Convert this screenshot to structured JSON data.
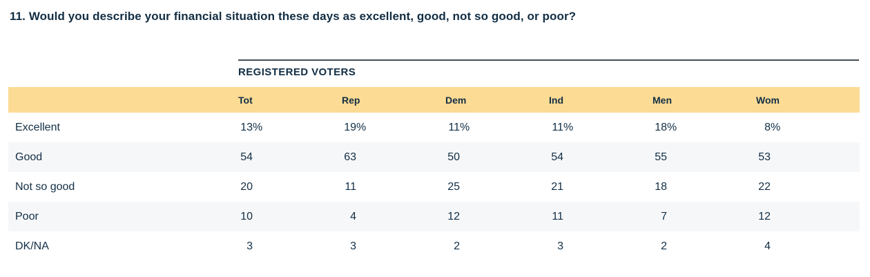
{
  "question": {
    "title": "11. Would you describe your financial situation these days as excellent, good, not so good, or poor?"
  },
  "table": {
    "section_label": "REGISTERED VOTERS",
    "columns": [
      "Tot",
      "Rep",
      "Dem",
      "Ind",
      "Men",
      "Wom"
    ],
    "rows": [
      {
        "label": "Excellent",
        "values": [
          "13%",
          "19%",
          "11%",
          "11%",
          "18%",
          "8%"
        ]
      },
      {
        "label": "Good",
        "values": [
          "54",
          "63",
          "50",
          "54",
          "55",
          "53"
        ]
      },
      {
        "label": "Not so good",
        "values": [
          "20",
          "11",
          "25",
          "21",
          "18",
          "22"
        ]
      },
      {
        "label": "Poor",
        "values": [
          "10",
          "4",
          "12",
          "11",
          "7",
          "12"
        ]
      },
      {
        "label": "DK/NA",
        "values": [
          "3",
          "3",
          "2",
          "3",
          "2",
          "4"
        ]
      }
    ]
  },
  "colors": {
    "text": "#122e44",
    "header_band": "#fcdb94",
    "alt_row": "#f6f7f9",
    "divider": "#444e57"
  },
  "chart_data": {
    "type": "table",
    "title": "11. Would you describe your financial situation these days as excellent, good, not so good, or poor?",
    "group_header": "REGISTERED VOTERS",
    "columns": [
      "Tot",
      "Rep",
      "Dem",
      "Ind",
      "Men",
      "Wom"
    ],
    "row_labels": [
      "Excellent",
      "Good",
      "Not so good",
      "Poor",
      "DK/NA"
    ],
    "units": "percent",
    "series": [
      {
        "name": "Tot",
        "values": [
          13,
          54,
          20,
          10,
          3
        ]
      },
      {
        "name": "Rep",
        "values": [
          19,
          63,
          11,
          4,
          3
        ]
      },
      {
        "name": "Dem",
        "values": [
          11,
          50,
          25,
          12,
          2
        ]
      },
      {
        "name": "Ind",
        "values": [
          11,
          54,
          21,
          11,
          3
        ]
      },
      {
        "name": "Men",
        "values": [
          18,
          55,
          18,
          7,
          2
        ]
      },
      {
        "name": "Wom",
        "values": [
          8,
          53,
          22,
          12,
          4
        ]
      }
    ]
  }
}
